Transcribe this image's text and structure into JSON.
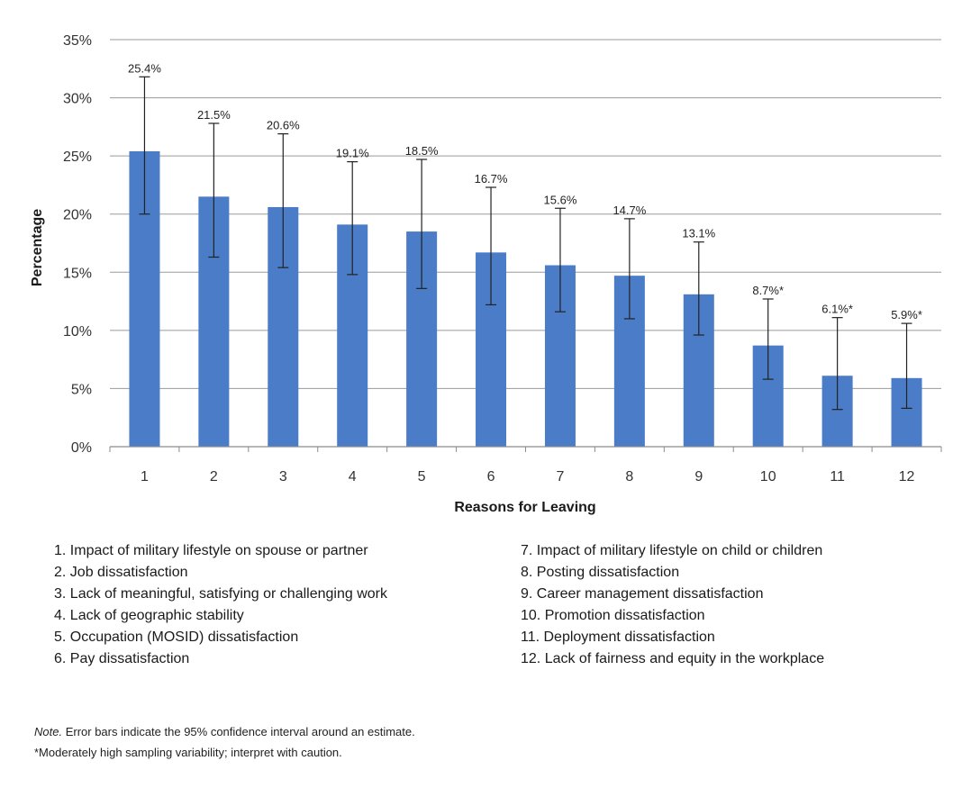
{
  "chart_data": {
    "type": "bar",
    "categories": [
      "1",
      "2",
      "3",
      "4",
      "5",
      "6",
      "7",
      "8",
      "9",
      "10",
      "11",
      "12"
    ],
    "values": [
      25.4,
      21.5,
      20.6,
      19.1,
      18.5,
      16.7,
      15.6,
      14.7,
      13.1,
      8.7,
      6.1,
      5.9
    ],
    "data_labels": [
      "25.4%",
      "21.5%",
      "20.6%",
      "19.1%",
      "18.5%",
      "16.7%",
      "15.6%",
      "14.7%",
      "13.1%",
      "8.7%*",
      "6.1%*",
      "5.9%*"
    ],
    "error_low": [
      20.0,
      16.3,
      15.4,
      14.8,
      13.6,
      12.2,
      11.6,
      11.0,
      9.6,
      5.8,
      3.2,
      3.3
    ],
    "error_high": [
      31.8,
      27.8,
      26.9,
      24.5,
      24.7,
      22.3,
      20.5,
      19.6,
      17.6,
      12.7,
      11.1,
      10.6
    ],
    "ylim": [
      0,
      35
    ],
    "yticks": [
      0,
      5,
      10,
      15,
      20,
      25,
      30,
      35
    ],
    "ytick_labels": [
      "0%",
      "5%",
      "10%",
      "15%",
      "20%",
      "25%",
      "30%",
      "35%"
    ],
    "xlabel": "Reasons for Leaving",
    "ylabel": "Percentage",
    "grid": true,
    "bar_color": "#4a7cc7"
  },
  "legend": {
    "left": [
      "1. Impact of military lifestyle on spouse or partner",
      "2. Job dissatisfaction",
      "3. Lack of meaningful, satisfying or challenging work",
      "4. Lack of geographic stability",
      "5. Occupation (MOSID) dissatisfaction",
      "6. Pay dissatisfaction"
    ],
    "right": [
      "7. Impact of military lifestyle on child or children",
      "8. Posting dissatisfaction",
      "9. Career management dissatisfaction",
      "10. Promotion dissatisfaction",
      "11. Deployment dissatisfaction",
      "12. Lack of fairness and equity in the workplace"
    ]
  },
  "note": {
    "label": "Note.",
    "text": " Error bars indicate the 95% confidence interval around an estimate.",
    "caution": "*Moderately high sampling variability; interpret with caution."
  }
}
